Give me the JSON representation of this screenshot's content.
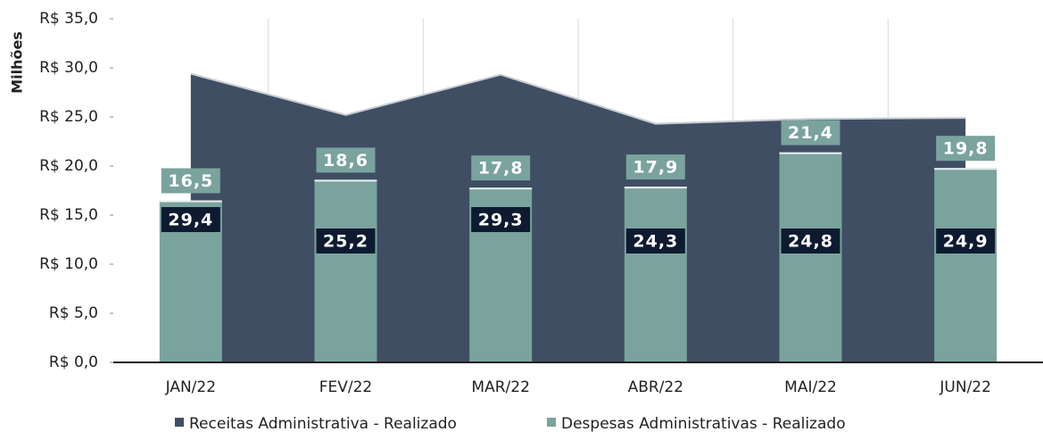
{
  "chart_data": {
    "type": "combo",
    "y_axis_label": "Milhões",
    "categories": [
      "JAN/22",
      "FEV/22",
      "MAR/22",
      "ABR/22",
      "MAI/22",
      "JUN/22"
    ],
    "series": [
      {
        "name": "Receitas Administrativa - Realizado",
        "type": "area",
        "color": "#3f4e63",
        "values": [
          29.4,
          25.2,
          29.3,
          24.3,
          24.8,
          24.9
        ],
        "value_labels": [
          "29,4",
          "25,2",
          "29,3",
          "24,3",
          "24,8",
          "24,9"
        ]
      },
      {
        "name": "Despesas Administrativas - Realizado",
        "type": "bar",
        "color": "#7aa39d",
        "values": [
          16.5,
          18.6,
          17.8,
          17.9,
          21.4,
          19.8
        ],
        "value_labels": [
          "16,5",
          "18,6",
          "17,8",
          "17,9",
          "21,4",
          "19,8"
        ]
      }
    ],
    "ylim": [
      0,
      35
    ],
    "yticks": [
      {
        "value": 0,
        "label": "R$ 0,0"
      },
      {
        "value": 5,
        "label": "R$ 5,0"
      },
      {
        "value": 10,
        "label": "R$ 10,0"
      },
      {
        "value": 15,
        "label": "R$ 15,0"
      },
      {
        "value": 20,
        "label": "R$ 20,0"
      },
      {
        "value": 25,
        "label": "R$ 25,0"
      },
      {
        "value": 30,
        "label": "R$ 30,0"
      },
      {
        "value": 35,
        "label": "R$ 35,0"
      }
    ],
    "legend": "bottom"
  }
}
